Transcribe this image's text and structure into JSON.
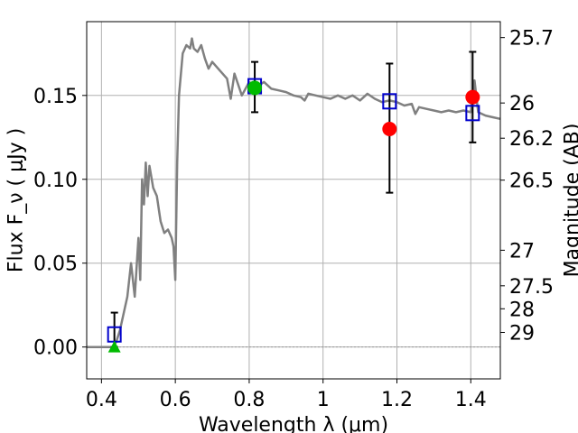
{
  "chart_data": {
    "type": "line",
    "xlabel": "Wavelength  λ (μm)",
    "ylabel_left": "Flux  F_ν  ( μJy )",
    "ylabel_right": "Magnitude (AB)",
    "xlim": [
      0.36,
      1.48
    ],
    "ylim": [
      -0.019,
      0.194
    ],
    "grid": true,
    "x_ticks": [
      0.4,
      0.6,
      0.8,
      1.0,
      1.2,
      1.4
    ],
    "x_tick_labels": [
      "0.4",
      "0.6",
      "0.8",
      "1",
      "1.2",
      "1.4"
    ],
    "y_ticks": [
      0.0,
      0.05,
      0.1,
      0.15
    ],
    "y_tick_labels": [
      "0.00",
      "0.05",
      "0.10",
      "0.15"
    ],
    "right_ticks": [
      {
        "label": "25.7",
        "flux": 0.1845
      },
      {
        "label": "26",
        "flux": 0.1455
      },
      {
        "label": "26.2",
        "flux": 0.1245
      },
      {
        "label": "26.5",
        "flux": 0.0995
      },
      {
        "label": "27",
        "flux": 0.0577
      },
      {
        "label": "27.5",
        "flux": 0.0365
      },
      {
        "label": "28",
        "flux": 0.0228
      },
      {
        "label": "29",
        "flux": 0.0087
      }
    ],
    "series": [
      {
        "kind": "model_spectrum",
        "color": "#808080",
        "x": [
          0.36,
          0.43,
          0.44,
          0.45,
          0.46,
          0.47,
          0.48,
          0.49,
          0.5,
          0.505,
          0.51,
          0.515,
          0.52,
          0.525,
          0.53,
          0.54,
          0.55,
          0.56,
          0.57,
          0.58,
          0.59,
          0.595,
          0.6,
          0.605,
          0.61,
          0.62,
          0.63,
          0.64,
          0.645,
          0.65,
          0.66,
          0.67,
          0.68,
          0.69,
          0.7,
          0.72,
          0.74,
          0.75,
          0.76,
          0.78,
          0.8,
          0.82,
          0.84,
          0.86,
          0.88,
          0.9,
          0.92,
          0.94,
          0.95,
          0.96,
          0.98,
          1.0,
          1.02,
          1.04,
          1.06,
          1.08,
          1.1,
          1.12,
          1.14,
          1.16,
          1.18,
          1.2,
          1.22,
          1.24,
          1.25,
          1.26,
          1.28,
          1.3,
          1.32,
          1.34,
          1.36,
          1.38,
          1.4,
          1.41,
          1.42,
          1.44,
          1.46,
          1.48
        ],
        "y": [
          0.0,
          0.0,
          0.003,
          0.01,
          0.02,
          0.03,
          0.05,
          0.03,
          0.065,
          0.04,
          0.1,
          0.085,
          0.11,
          0.09,
          0.108,
          0.095,
          0.09,
          0.075,
          0.068,
          0.07,
          0.065,
          0.06,
          0.04,
          0.11,
          0.15,
          0.175,
          0.18,
          0.178,
          0.184,
          0.178,
          0.176,
          0.18,
          0.172,
          0.166,
          0.17,
          0.165,
          0.16,
          0.148,
          0.163,
          0.15,
          0.158,
          0.155,
          0.158,
          0.154,
          0.153,
          0.152,
          0.15,
          0.149,
          0.147,
          0.151,
          0.15,
          0.149,
          0.148,
          0.15,
          0.148,
          0.15,
          0.147,
          0.151,
          0.148,
          0.146,
          0.147,
          0.146,
          0.144,
          0.145,
          0.139,
          0.143,
          0.142,
          0.141,
          0.14,
          0.141,
          0.14,
          0.141,
          0.14,
          0.159,
          0.14,
          0.138,
          0.137,
          0.136
        ]
      },
      {
        "kind": "model_photometry",
        "marker": "open-square",
        "color": "#0000cc",
        "points": [
          {
            "x": 0.435,
            "y": 0.0075
          },
          {
            "x": 0.815,
            "y": 0.1555
          },
          {
            "x": 1.18,
            "y": 0.1465
          },
          {
            "x": 1.405,
            "y": 0.1395
          }
        ]
      },
      {
        "kind": "observed_detection",
        "marker": "circle",
        "color": "#ff0000",
        "points": [
          {
            "x": 1.18,
            "y": 0.13,
            "yerr_low": 0.092,
            "yerr_high": 0.169
          },
          {
            "x": 1.405,
            "y": 0.149,
            "yerr_low": 0.122,
            "yerr_high": 0.176
          }
        ]
      },
      {
        "kind": "observed_green",
        "color": "#00bb00",
        "points": [
          {
            "x": 0.815,
            "y": 0.1545,
            "marker": "circle",
            "yerr_low": 0.14,
            "yerr_high": 0.17
          },
          {
            "x": 0.435,
            "y": 0.0,
            "marker": "triangle",
            "yerr_low": 0.0,
            "yerr_high": 0.0205
          }
        ]
      }
    ]
  }
}
